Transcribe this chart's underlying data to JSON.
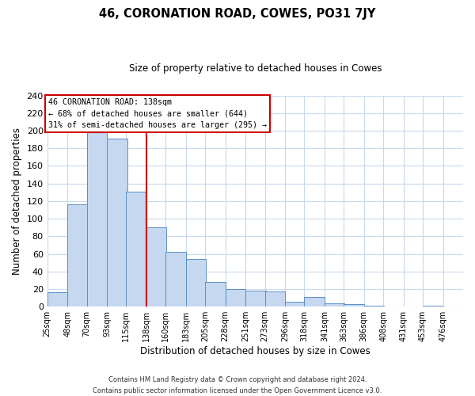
{
  "title": "46, CORONATION ROAD, COWES, PO31 7JY",
  "subtitle": "Size of property relative to detached houses in Cowes",
  "xlabel": "Distribution of detached houses by size in Cowes",
  "ylabel": "Number of detached properties",
  "bar_left_edges": [
    25,
    48,
    70,
    93,
    115,
    138,
    160,
    183,
    205,
    228,
    251,
    273,
    296,
    318,
    341,
    363,
    386,
    408,
    431,
    453
  ],
  "bar_heights": [
    16,
    116,
    198,
    191,
    131,
    90,
    62,
    54,
    28,
    20,
    18,
    17,
    6,
    11,
    4,
    3,
    1,
    0,
    0,
    1
  ],
  "bin_width": 23,
  "tick_labels": [
    "25sqm",
    "48sqm",
    "70sqm",
    "93sqm",
    "115sqm",
    "138sqm",
    "160sqm",
    "183sqm",
    "205sqm",
    "228sqm",
    "251sqm",
    "273sqm",
    "296sqm",
    "318sqm",
    "341sqm",
    "363sqm",
    "386sqm",
    "408sqm",
    "431sqm",
    "453sqm",
    "476sqm"
  ],
  "tick_positions": [
    25,
    48,
    70,
    93,
    115,
    138,
    160,
    183,
    205,
    228,
    251,
    273,
    296,
    318,
    341,
    363,
    386,
    408,
    431,
    453,
    476
  ],
  "bar_color": "#c5d8f0",
  "bar_edge_color": "#5a8fc3",
  "vline_x": 138,
  "vline_color": "#cc0000",
  "annotation_line1": "46 CORONATION ROAD: 138sqm",
  "annotation_line2": "← 68% of detached houses are smaller (644)",
  "annotation_line3": "31% of semi-detached houses are larger (295) →",
  "ylim": [
    0,
    240
  ],
  "yticks": [
    0,
    20,
    40,
    60,
    80,
    100,
    120,
    140,
    160,
    180,
    200,
    220,
    240
  ],
  "xmin": 25,
  "xmax": 499,
  "footer_line1": "Contains HM Land Registry data © Crown copyright and database right 2024.",
  "footer_line2": "Contains public sector information licensed under the Open Government Licence v3.0.",
  "background_color": "#ffffff",
  "grid_color": "#c8d8ec"
}
